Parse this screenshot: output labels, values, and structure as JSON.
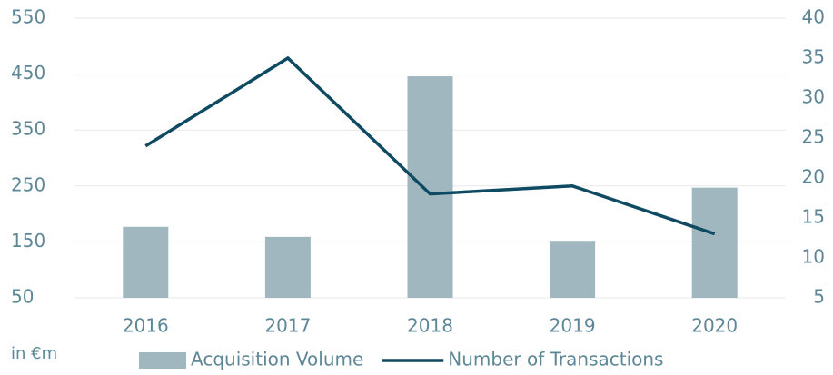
{
  "chart_data": {
    "type": "bar-line",
    "y_label": "in €m",
    "categories": [
      "2016",
      "2017",
      "2018",
      "2019",
      "2020"
    ],
    "series": [
      {
        "name": "Acquisition Volume",
        "type": "bar",
        "color": "#a1b7bf",
        "values": [
          177,
          159,
          446,
          152,
          247
        ]
      },
      {
        "name": "Number of Transactions",
        "type": "line",
        "color": "#0f4a63",
        "axis": "y2",
        "values": [
          24,
          35,
          18,
          19,
          13
        ]
      }
    ],
    "ylim": [
      50,
      550
    ],
    "yticks": [
      50,
      150,
      250,
      350,
      450,
      550
    ],
    "y2lim": [
      5,
      40
    ],
    "y2ticks": [
      5,
      10,
      15,
      20,
      25,
      30,
      35,
      40
    ],
    "grid": true,
    "legend": "bottom"
  }
}
